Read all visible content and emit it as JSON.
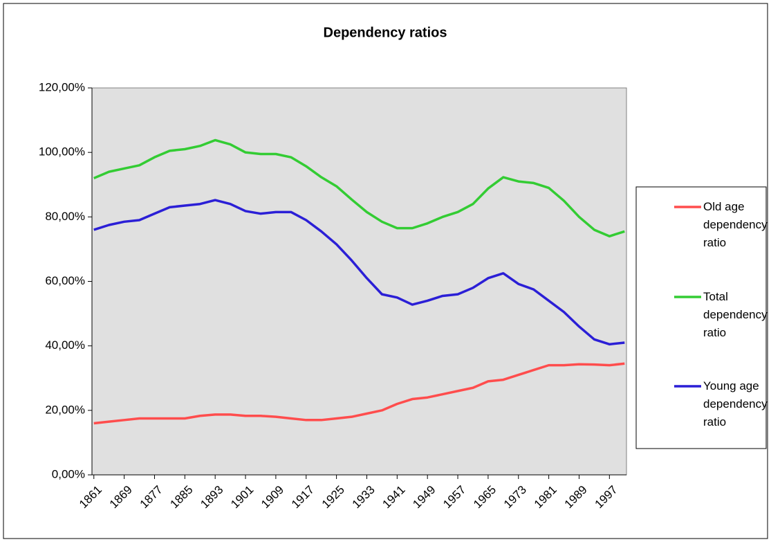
{
  "chart_data": {
    "type": "line",
    "title": "Dependency ratios",
    "x": [
      1861,
      1865,
      1869,
      1873,
      1877,
      1881,
      1885,
      1889,
      1893,
      1897,
      1901,
      1905,
      1909,
      1913,
      1917,
      1921,
      1925,
      1929,
      1933,
      1937,
      1941,
      1945,
      1949,
      1953,
      1957,
      1961,
      1965,
      1969,
      1973,
      1977,
      1981,
      1985,
      1989,
      1993,
      1997,
      2001
    ],
    "xlim": [
      1860.5,
      2001.5
    ],
    "xticks": [
      1861,
      1869,
      1877,
      1885,
      1893,
      1901,
      1909,
      1917,
      1925,
      1933,
      1941,
      1949,
      1957,
      1965,
      1973,
      1981,
      1989,
      1997
    ],
    "ylim": [
      0,
      120
    ],
    "yticks": [
      {
        "value": 0,
        "label": "0,00%"
      },
      {
        "value": 20,
        "label": "20,00%"
      },
      {
        "value": 40,
        "label": "40,00%"
      },
      {
        "value": 60,
        "label": "60,00%"
      },
      {
        "value": 80,
        "label": "80,00%"
      },
      {
        "value": 100,
        "label": "100,00%"
      },
      {
        "value": 120,
        "label": "120,00%"
      }
    ],
    "grid": false,
    "legend": "right",
    "series": [
      {
        "name": "Old age dependency ratio",
        "color": "#ff4d4d",
        "values": [
          16,
          16.5,
          17,
          17.5,
          17.5,
          17.5,
          17.5,
          18.3,
          18.7,
          18.7,
          18.3,
          18.3,
          18,
          17.5,
          17,
          17,
          17.5,
          18,
          19,
          20,
          22,
          23.5,
          24,
          25,
          26,
          27,
          29,
          29.5,
          31,
          32.5,
          34,
          34,
          34.3,
          34.2,
          34,
          34.5
        ]
      },
      {
        "name": "Total dependency ratio",
        "color": "#33cc33",
        "values": [
          92,
          94,
          95,
          96,
          98.5,
          100.5,
          101,
          102,
          103.8,
          102.5,
          100,
          99.5,
          99.5,
          98.5,
          95.7,
          92.3,
          89.5,
          85.4,
          81.5,
          78.5,
          76.5,
          76.5,
          78,
          80,
          81.5,
          84,
          88.8,
          92.3,
          91,
          90.5,
          89,
          85,
          80,
          76,
          74,
          75.5
        ]
      },
      {
        "name": "Young age dependency ratio",
        "color": "#2b1fd6",
        "values": [
          76,
          77.5,
          78.5,
          79,
          81,
          83,
          83.5,
          84,
          85.2,
          84,
          81.8,
          81,
          81.5,
          81.5,
          79,
          75.5,
          71.5,
          66.5,
          61,
          56,
          55,
          52.8,
          54,
          55.5,
          56,
          58,
          61,
          62.5,
          59.2,
          57.5,
          54,
          50.5,
          46,
          42,
          40.5,
          41
        ]
      }
    ]
  }
}
